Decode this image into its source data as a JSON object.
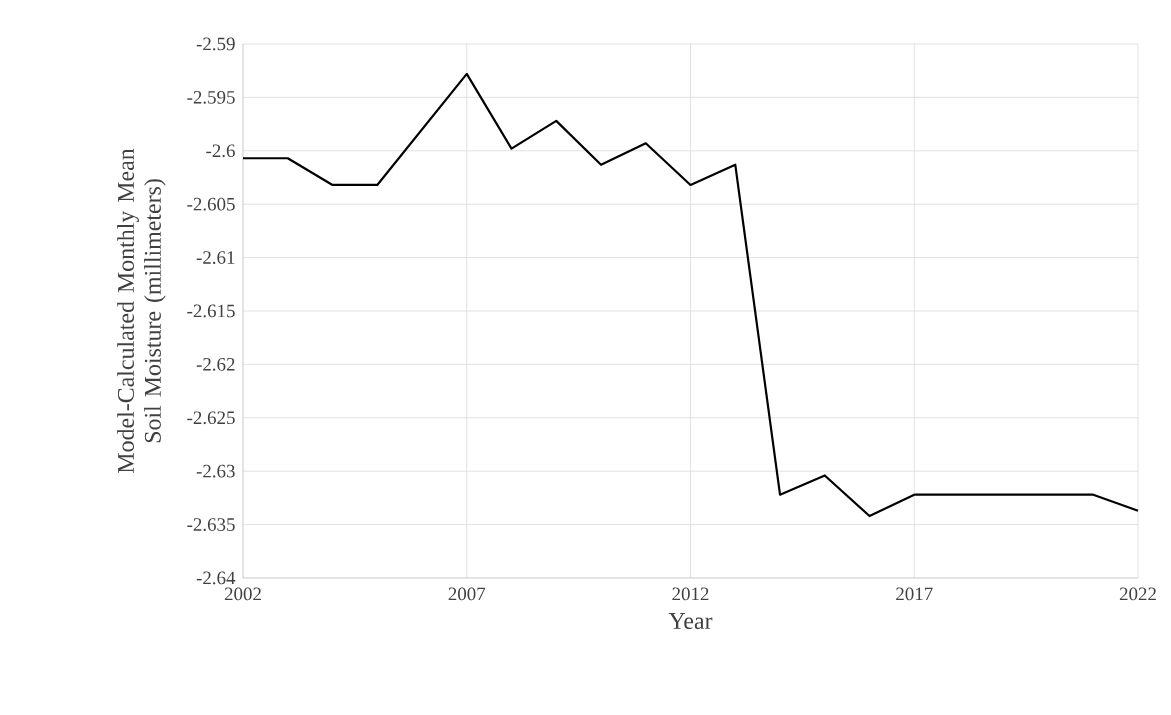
{
  "chart_data": {
    "type": "line",
    "xlabel": "Year",
    "ylabel": "Model-Calculated Monthly Mean Soil Moisture (millimeters)",
    "x": [
      2002,
      2003,
      2004,
      2005,
      2006,
      2007,
      2008,
      2009,
      2010,
      2011,
      2012,
      2013,
      2014,
      2015,
      2016,
      2017,
      2018,
      2019,
      2020,
      2021,
      2022
    ],
    "series": [
      {
        "color": "#000000",
        "values": [
          -2.6007,
          -2.6007,
          -2.6032,
          -2.6032,
          -2.598,
          -2.5928,
          -2.5998,
          -2.5972,
          -2.6013,
          -2.5993,
          -2.6032,
          -2.6013,
          -2.6322,
          -2.6304,
          -2.6342,
          -2.6322,
          -2.6322,
          -2.6322,
          -2.6322,
          -2.6322,
          -2.6337
        ]
      }
    ],
    "xlim": [
      2002,
      2022
    ],
    "xticks": [
      2002,
      2007,
      2012,
      2017,
      2022
    ],
    "ylim": [
      -2.64,
      -2.59
    ],
    "yticks": [
      -2.64,
      -2.635,
      -2.63,
      -2.625,
      -2.62,
      -2.615,
      -2.61,
      -2.605,
      -2.6,
      -2.595,
      -2.59
    ],
    "grid": true,
    "marker": "none",
    "line_style": "solid"
  }
}
